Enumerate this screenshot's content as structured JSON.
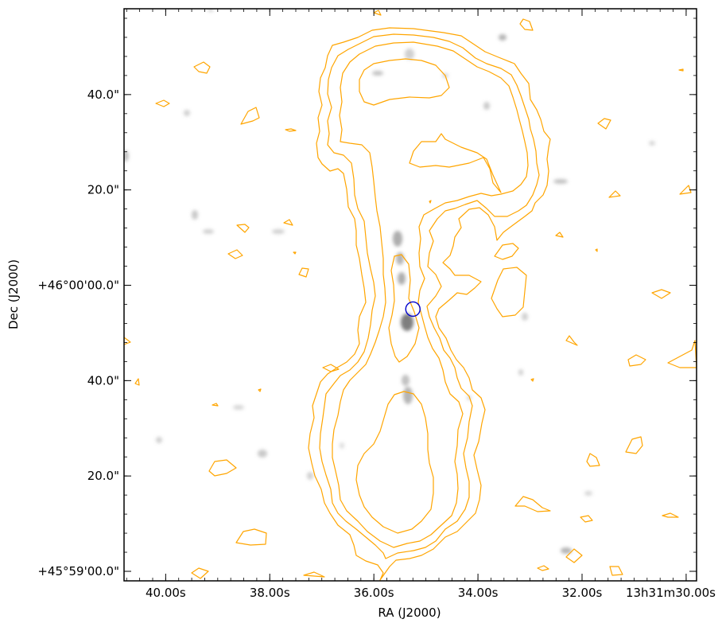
{
  "chart_data": {
    "type": "contour",
    "title": "",
    "xlabel": "RA (J2000)",
    "ylabel": "Dec (J2000)",
    "x_ticks": [
      "40.00s",
      "38.00s",
      "36.00s",
      "34.00s",
      "32.00s",
      "13h31m30.00s"
    ],
    "y_ticks": [
      "40.0\"",
      "20.0\"",
      "+46°00'00.0\"",
      "40.0\"",
      "20.0\"",
      "+45°59'00.0\""
    ],
    "x_tick_values_s": [
      40,
      38,
      36,
      34,
      32,
      30
    ],
    "y_tick_values_arcsec": [
      40,
      20,
      0,
      -20,
      -40,
      -60
    ],
    "xlim_s": [
      40.8,
      29.8
    ],
    "ylim_arcsec": [
      -62,
      58
    ],
    "background": "greyscale optical image",
    "contour_color": "#FFA500",
    "marker": {
      "type": "circle",
      "color": "#0000CC",
      "ra_s": 35.25,
      "dec_arcsec": -5
    },
    "grid": false
  }
}
